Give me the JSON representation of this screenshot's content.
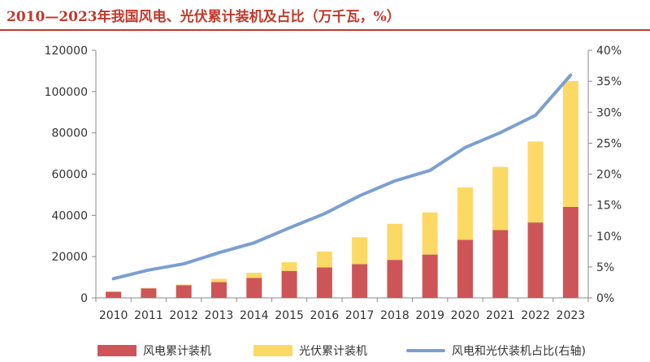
{
  "title": "2010—2023年我国风电、光伏累计装机及占比（万千瓦，%）",
  "colors": {
    "title": "#c0392b",
    "wind": "#cd5557",
    "solar": "#fcd965",
    "ratio": "#7b9fcf"
  },
  "chart_data": {
    "type": "bar",
    "stacked": true,
    "categories": [
      "2010",
      "2011",
      "2012",
      "2013",
      "2014",
      "2015",
      "2016",
      "2017",
      "2018",
      "2019",
      "2020",
      "2021",
      "2022",
      "2023"
    ],
    "series": [
      {
        "name": "风电累计装机",
        "type": "bar",
        "axis": "left",
        "values": [
          2958,
          4623,
          6142,
          7652,
          9657,
          13075,
          14747,
          16367,
          18426,
          21005,
          28153,
          32848,
          36544,
          44134
        ]
      },
      {
        "name": "光伏累计装机",
        "type": "bar",
        "axis": "left",
        "values": [
          86,
          222,
          341,
          1589,
          2486,
          4218,
          7742,
          13025,
          17446,
          20468,
          25343,
          30656,
          39261,
          60949
        ]
      },
      {
        "name": "风电和光伏装机占比(右轴)",
        "type": "line",
        "axis": "right",
        "values": [
          3.1,
          4.5,
          5.5,
          7.3,
          8.9,
          11.3,
          13.6,
          16.5,
          18.9,
          20.6,
          24.3,
          26.7,
          29.5,
          36.0
        ]
      }
    ],
    "left_axis": {
      "ylim": [
        0,
        120000
      ],
      "ticks": [
        "0",
        "20000",
        "40000",
        "60000",
        "80000",
        "100000",
        "120000"
      ]
    },
    "right_axis": {
      "ylim": [
        0,
        40
      ],
      "ticks": [
        "0%",
        "5%",
        "10%",
        "15%",
        "20%",
        "25%",
        "30%",
        "35%",
        "40%"
      ]
    },
    "grid": false,
    "legend_position": "bottom"
  },
  "legend": [
    "风电累计装机",
    "光伏累计装机",
    "风电和光伏装机占比(右轴)"
  ]
}
